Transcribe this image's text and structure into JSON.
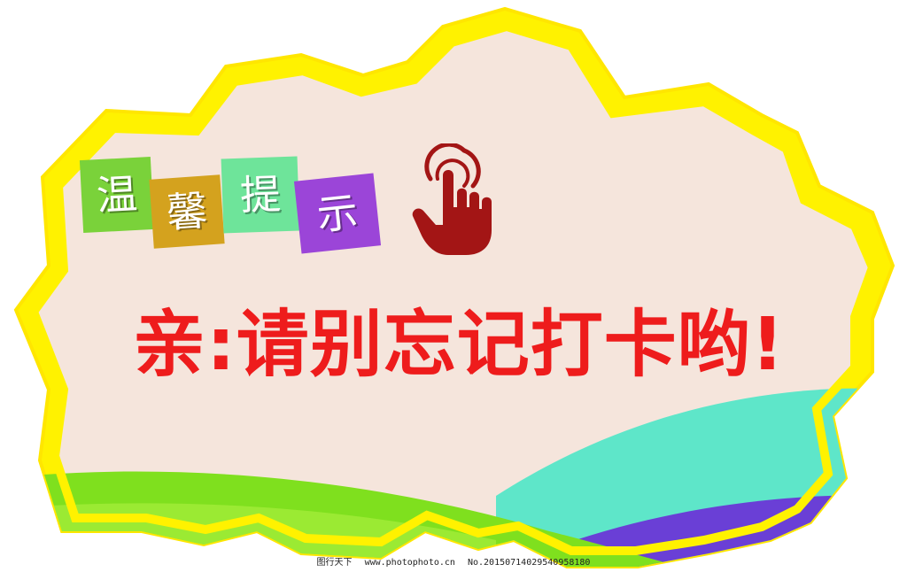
{
  "poster": {
    "title_chars": [
      "温",
      "馨",
      "提",
      "示"
    ],
    "message": "亲:请别忘记打卡哟!",
    "hand_icon": "pointing-hand-icon"
  },
  "colors": {
    "border": "#fff200",
    "background": "#f5e5dc",
    "message": "#ee1c1c",
    "hand": "#a31515",
    "tile_1": "#7ad23a",
    "tile_2": "#d4a21e",
    "tile_3": "#6ee49a",
    "tile_4": "#9b45d8",
    "wave_green": "#7fe01e",
    "wave_teal": "#5ee6c9",
    "wave_purple": "#6a3fd6"
  },
  "watermark": {
    "site": "图行天下",
    "url": "www.photophoto.cn",
    "number": "No.20150714029540958180"
  }
}
